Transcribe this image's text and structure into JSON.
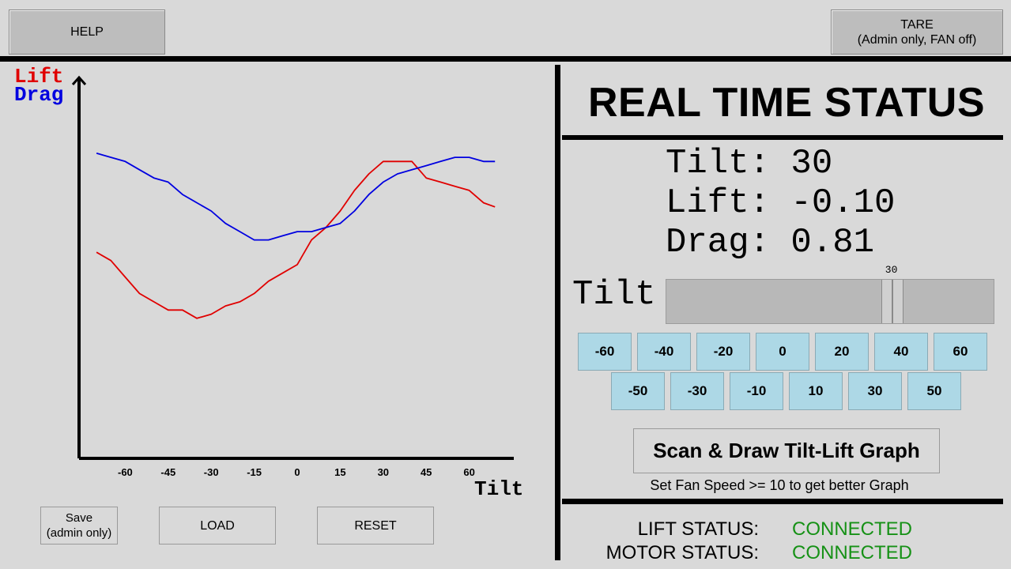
{
  "header": {
    "help_label": "HELP",
    "tare_line1": "TARE",
    "tare_line2": "(Admin only, FAN off)"
  },
  "chart": {
    "legend_lift": "Lift",
    "legend_drag": "Drag",
    "xlabel": "Tilt",
    "tick_labels": [
      "-60",
      "-45",
      "-30",
      "-15",
      "0",
      "15",
      "30",
      "45",
      "60"
    ]
  },
  "chart_data": {
    "type": "line",
    "x": [
      -70,
      -65,
      -60,
      -55,
      -50,
      -45,
      -40,
      -35,
      -30,
      -25,
      -20,
      -15,
      -10,
      -5,
      0,
      5,
      10,
      15,
      20,
      25,
      30,
      35,
      40,
      45,
      50,
      55,
      60,
      65,
      69
    ],
    "series": [
      {
        "name": "Lift",
        "color": "#e00000",
        "values": [
          0.52,
          0.5,
          0.46,
          0.42,
          0.4,
          0.38,
          0.38,
          0.36,
          0.37,
          0.39,
          0.4,
          0.42,
          0.45,
          0.47,
          0.49,
          0.55,
          0.58,
          0.62,
          0.67,
          0.71,
          0.74,
          0.74,
          0.74,
          0.7,
          0.69,
          0.68,
          0.67,
          0.64,
          0.63
        ]
      },
      {
        "name": "Drag",
        "color": "#0000e0",
        "values": [
          0.76,
          0.75,
          0.74,
          0.72,
          0.7,
          0.69,
          0.66,
          0.64,
          0.62,
          0.59,
          0.57,
          0.55,
          0.55,
          0.56,
          0.57,
          0.57,
          0.58,
          0.59,
          0.62,
          0.66,
          0.69,
          0.71,
          0.72,
          0.73,
          0.74,
          0.75,
          0.75,
          0.74,
          0.74
        ]
      }
    ],
    "xlabel": "Tilt",
    "xlim": [
      -75,
      75
    ]
  },
  "bottom_buttons": {
    "save_line1": "Save",
    "save_line2": "(admin only)",
    "load_label": "LOAD",
    "reset_label": "RESET"
  },
  "status": {
    "title": "REAL TIME STATUS",
    "tilt_line": "Tilt: 30",
    "lift_line": "Lift: -0.10",
    "drag_line": "Drag: 0.81",
    "slider_label": "Tilt",
    "slider_value": "30",
    "slider_min": -75,
    "slider_max": 75,
    "slider_position_value": 30,
    "tilt_buttons_row1": [
      "-60",
      "-40",
      "-20",
      "0",
      "20",
      "40",
      "60"
    ],
    "tilt_buttons_row2": [
      "-50",
      "-30",
      "-10",
      "10",
      "30",
      "50"
    ],
    "scan_label": "Scan & Draw Tilt-Lift Graph",
    "scan_hint": "Set Fan Speed >= 10 to get better Graph",
    "lift_status_label": "LIFT STATUS:",
    "lift_status_value": "CONNECTED",
    "motor_status_label": "MOTOR STATUS:",
    "motor_status_value": "CONNECTED",
    "connected_color": "#169116"
  }
}
